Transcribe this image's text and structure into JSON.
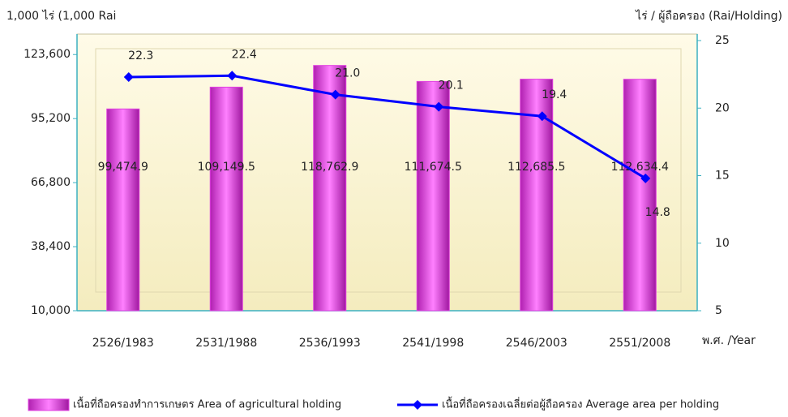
{
  "chart_data": {
    "type": "bar-line",
    "y_label": "1,000 ไร่ (1,000 Rai",
    "y2_label": "ไร่ / ผู้ถือครอง (Rai/Holding)",
    "x_label": "พ.ศ. /Year",
    "categories": [
      "2526/1983",
      "2531/1988",
      "2536/1993",
      "2541/1998",
      "2546/2003",
      "2551/2008"
    ],
    "series": [
      {
        "name": "เนื้อที่ถือครองทำการเกษตร Area of agricultural holding",
        "color": "#e040e0",
        "type": "bar",
        "values": [
          99474.9,
          109149.5,
          118762.9,
          111674.5,
          112685.5,
          112634.4
        ],
        "value_labels": [
          "99,474.9",
          "109,149.5",
          "118,762.9",
          "111,674.5",
          "112,685.5",
          "112,634.4"
        ]
      },
      {
        "name": "เนื้อที่ถือครองเฉลี่ยต่อผู้ถือครอง Average area per holding",
        "color": "#0000ff",
        "type": "line",
        "axis": "y2",
        "values": [
          22.3,
          22.4,
          21.0,
          20.1,
          19.4,
          14.8
        ],
        "value_labels": [
          "22.3",
          "22.4",
          "21.0",
          "20.1",
          "19.4",
          "14.8"
        ]
      }
    ],
    "ylim": [
      10000,
      129800
    ],
    "yticks": [
      {
        "value": 10000,
        "label": "10,000"
      },
      {
        "value": 38400,
        "label": "38,400"
      },
      {
        "value": 66800,
        "label": "66,800"
      },
      {
        "value": 95200,
        "label": "95,200"
      },
      {
        "value": 123600,
        "label": "123,600"
      }
    ],
    "y2lim": [
      5,
      25
    ],
    "y2ticks": [
      5,
      10,
      15,
      20,
      25
    ]
  }
}
